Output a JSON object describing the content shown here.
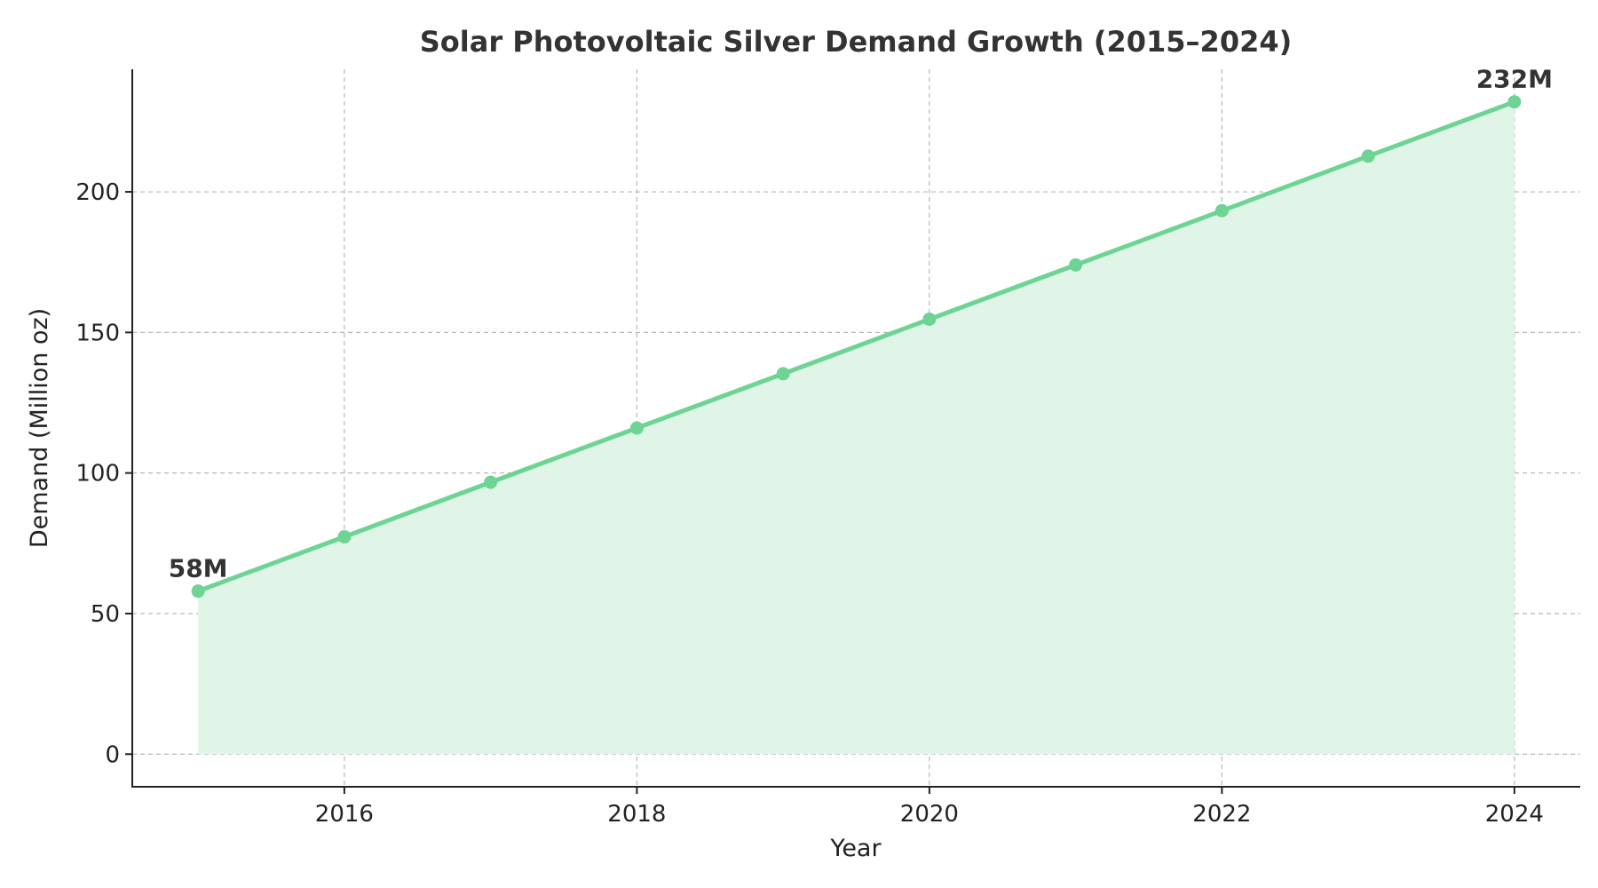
{
  "chart_data": {
    "type": "area",
    "title": "Solar Photovoltaic Silver Demand Growth (2015–2024)",
    "xlabel": "Year",
    "ylabel": "Demand (Million oz)",
    "x": [
      2015,
      2016,
      2017,
      2018,
      2019,
      2020,
      2021,
      2022,
      2023,
      2024
    ],
    "series": [
      {
        "values": [
          58,
          77.3,
          96.7,
          116,
          135.3,
          154.7,
          174,
          193.3,
          212.7,
          232
        ],
        "color": "#6dd493"
      }
    ],
    "fill_color": "#e0f5e8",
    "xlim": [
      2014.55,
      2024.45
    ],
    "ylim": [
      -11.6,
      243.6
    ],
    "xticks": [
      2016,
      2018,
      2020,
      2022,
      2024
    ],
    "xtick_labels": [
      "2016",
      "2018",
      "2020",
      "2022",
      "2024"
    ],
    "yticks": [
      0,
      50,
      100,
      150,
      200
    ],
    "ytick_labels": [
      "0",
      "50",
      "100",
      "150",
      "200"
    ],
    "grid": true,
    "annotations": [
      {
        "x": 2015,
        "y": 58,
        "text": "58M"
      },
      {
        "x": 2024,
        "y": 232,
        "text": "232M"
      }
    ]
  }
}
